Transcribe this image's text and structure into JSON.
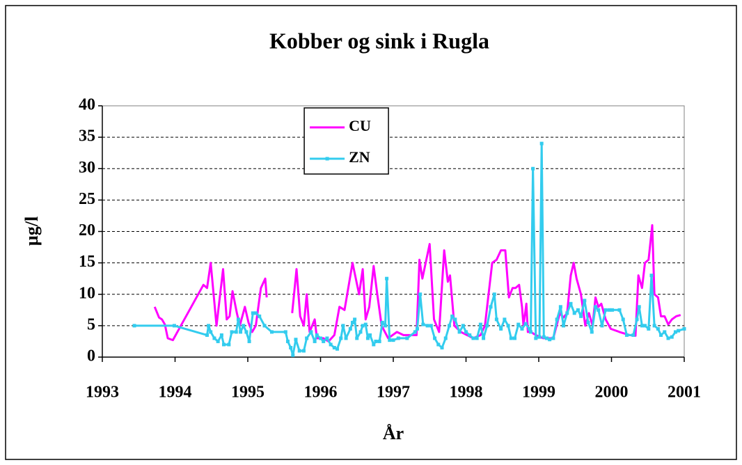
{
  "chart_data": {
    "type": "line",
    "title": "Kobber og sink i Rugla",
    "x_label": "År",
    "y_label": "µg/l",
    "xlim": [
      1993,
      2001
    ],
    "xticks": [
      1993,
      1994,
      1995,
      1996,
      1997,
      1998,
      1999,
      2000,
      2001
    ],
    "ylim": [
      0,
      40
    ],
    "yticks": [
      0,
      5,
      10,
      15,
      20,
      25,
      30,
      35,
      40
    ],
    "grid": true,
    "legend": "upper-center",
    "series": [
      {
        "name": "CU",
        "color": "#ff00ff",
        "marker": false,
        "x": [
          1993.72,
          1993.78,
          1993.82,
          1993.86,
          1993.9,
          1993.97,
          1994.39,
          1994.44,
          1994.49,
          1994.57,
          1994.66,
          1994.71,
          1994.75,
          1994.79,
          1994.85,
          1994.89,
          1994.96,
          1995.01,
          1995.06,
          1995.11,
          1995.18,
          1995.24,
          1995.26,
          1995.4,
          1995.61,
          1995.67,
          1995.72,
          1995.77,
          1995.81,
          1995.85,
          1995.92,
          1995.95,
          1996.04,
          1996.11,
          1996.19,
          1996.26,
          1996.33,
          1996.44,
          1996.53,
          1996.58,
          1996.62,
          1996.67,
          1996.73,
          1996.78,
          1996.84,
          1996.93,
          1997.05,
          1997.14,
          1997.32,
          1997.36,
          1997.4,
          1997.5,
          1997.56,
          1997.63,
          1997.7,
          1997.75,
          1997.78,
          1997.84,
          1997.93,
          1998.1,
          1998.2,
          1998.26,
          1998.36,
          1998.42,
          1998.48,
          1998.54,
          1998.59,
          1998.64,
          1998.68,
          1998.73,
          1998.77,
          1998.79,
          1998.83,
          1998.85,
          1998.89,
          1998.96,
          1999.06,
          1999.2,
          1999.29,
          1999.34,
          1999.39,
          1999.44,
          1999.48,
          1999.52,
          1999.58,
          1999.64,
          1999.69,
          1999.74,
          1999.78,
          1999.82,
          1999.86,
          1999.92,
          1999.99,
          2000.11,
          2000.25,
          2000.33,
          2000.37,
          2000.42,
          2000.46,
          2000.51,
          2000.56,
          2000.59,
          2000.64,
          2000.68,
          2000.73,
          2000.78,
          2000.83,
          2000.89,
          2000.95
        ],
        "values": [
          8,
          6.3,
          6,
          5.2,
          3,
          2.7,
          11.5,
          11,
          15,
          5,
          14,
          6,
          6.5,
          10.5,
          7,
          5,
          8,
          5.5,
          4,
          5,
          11,
          12.5,
          9.5,
          null,
          7,
          14,
          6.5,
          5,
          10,
          4,
          6,
          3,
          3,
          2.5,
          3.5,
          8,
          7.5,
          15,
          10,
          14,
          6,
          8,
          14.5,
          10,
          5,
          3,
          4,
          3.5,
          3.5,
          15.5,
          12.5,
          18,
          6,
          4,
          17,
          12,
          13,
          5,
          4,
          3,
          3.5,
          5,
          15,
          15.5,
          17,
          17,
          9.5,
          11,
          11,
          11.5,
          8,
          5,
          8.5,
          4,
          4,
          3.5,
          3,
          3,
          7,
          6.3,
          7,
          13,
          15,
          12.5,
          10,
          5,
          7,
          5,
          9.5,
          8,
          8.5,
          6,
          4.5,
          4,
          3.5,
          3.4,
          13,
          11,
          15,
          15.5,
          21,
          10,
          9.5,
          6.5,
          6.5,
          5.2,
          6,
          6.5,
          6.7
        ]
      },
      {
        "name": "ZN",
        "color": "#33ccee",
        "marker": true,
        "x": [
          1993.44,
          1993.99,
          1994.44,
          1994.46,
          1994.49,
          1994.54,
          1994.59,
          1994.64,
          1994.67,
          1994.74,
          1994.78,
          1994.84,
          1994.87,
          1994.9,
          1994.94,
          1994.98,
          1995.02,
          1995.07,
          1995.11,
          1995.16,
          1995.23,
          1995.33,
          1995.52,
          1995.55,
          1995.59,
          1995.62,
          1995.66,
          1995.71,
          1995.77,
          1995.81,
          1995.87,
          1995.92,
          1995.95,
          1996.0,
          1996.04,
          1996.09,
          1996.14,
          1996.19,
          1996.23,
          1996.28,
          1996.31,
          1996.35,
          1996.41,
          1996.44,
          1996.47,
          1996.5,
          1996.55,
          1996.58,
          1996.62,
          1996.65,
          1996.68,
          1996.73,
          1996.76,
          1996.81,
          1996.85,
          1996.89,
          1996.91,
          1996.95,
          1997.0,
          1997.07,
          1997.19,
          1997.3,
          1997.33,
          1997.37,
          1997.41,
          1997.47,
          1997.52,
          1997.57,
          1997.62,
          1997.67,
          1997.72,
          1997.77,
          1997.81,
          1997.85,
          1997.91,
          1997.96,
          1998.0,
          1998.05,
          1998.1,
          1998.15,
          1998.2,
          1998.24,
          1998.29,
          1998.34,
          1998.39,
          1998.42,
          1998.48,
          1998.53,
          1998.58,
          1998.62,
          1998.67,
          1998.72,
          1998.77,
          1998.82,
          1998.87,
          1998.89,
          1998.92,
          1998.96,
          1999.01,
          1999.04,
          1999.07,
          1999.11,
          1999.15,
          1999.2,
          1999.25,
          1999.3,
          1999.34,
          1999.39,
          1999.44,
          1999.49,
          1999.54,
          1999.58,
          1999.63,
          1999.68,
          1999.73,
          1999.78,
          1999.82,
          1999.87,
          1999.92,
          1999.97,
          2000.01,
          2000.11,
          2000.16,
          2000.21,
          2000.3,
          2000.35,
          2000.38,
          2000.42,
          2000.46,
          2000.51,
          2000.55,
          2000.59,
          2000.64,
          2000.68,
          2000.73,
          2000.78,
          2000.83,
          2000.88,
          2000.92,
          2001.0
        ],
        "values": [
          5,
          5,
          3.5,
          5,
          4,
          3,
          2.5,
          3.5,
          2,
          2,
          4,
          4,
          6,
          4,
          5,
          4,
          2.5,
          7,
          7,
          6.5,
          5,
          4,
          4,
          2.5,
          1.5,
          0.3,
          2.8,
          1,
          1,
          3,
          4,
          2.5,
          3.5,
          3,
          2.5,
          3,
          2,
          1.5,
          1.3,
          3,
          5,
          3,
          4.5,
          5.5,
          6,
          3,
          4,
          5,
          5.2,
          3,
          3.5,
          2,
          2.5,
          2.5,
          5.5,
          5,
          12.5,
          2.7,
          2.7,
          3,
          3,
          4,
          4.5,
          10,
          5.2,
          5,
          5,
          3,
          2,
          1.5,
          3,
          5,
          6.5,
          6,
          4,
          5,
          4,
          3.5,
          3,
          3,
          5.2,
          3,
          5,
          8,
          10,
          6,
          4.5,
          6,
          5,
          3,
          3,
          5.2,
          4.5,
          5.3,
          4.5,
          4,
          30,
          3,
          3.2,
          34,
          3.2,
          3,
          2.8,
          3,
          6,
          8,
          5,
          7,
          8.5,
          7,
          7.5,
          6.5,
          9,
          5.5,
          4,
          8,
          7.5,
          5,
          7.5,
          7.5,
          7.5,
          7.5,
          6,
          3.5,
          3.5,
          6,
          8,
          5,
          5,
          4.5,
          13,
          5,
          4.5,
          3.5,
          4,
          3,
          3.2,
          4,
          4.2,
          4.5
        ]
      }
    ]
  }
}
